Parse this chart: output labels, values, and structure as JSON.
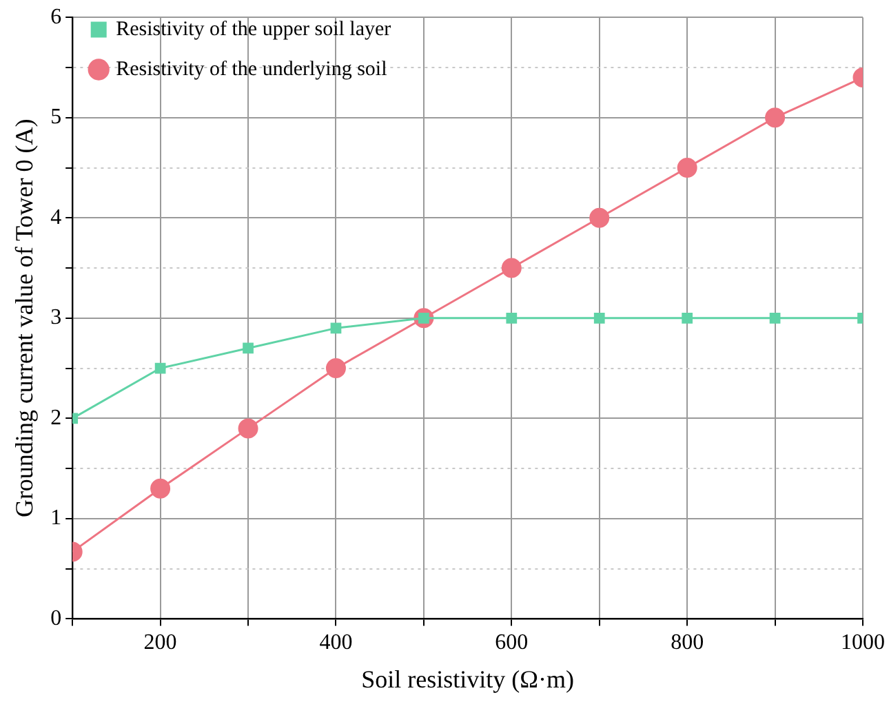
{
  "chart_data": {
    "type": "line",
    "xlabel": "Soil resistivity (Ω·m)",
    "ylabel": "Grounding current value of Tower 0 (A)",
    "x": [
      100,
      200,
      300,
      400,
      500,
      600,
      700,
      800,
      900,
      1000
    ],
    "series": [
      {
        "name": "Resistivity of the upper soil layer",
        "color": "#5fd3a6",
        "marker": "square",
        "values": [
          2.0,
          2.5,
          2.7,
          2.9,
          3.0,
          3.0,
          3.0,
          3.0,
          3.0,
          3.0
        ]
      },
      {
        "name": "Resistivity of the underlying soil",
        "color": "#ee7482",
        "marker": "circle",
        "values": [
          0.67,
          1.3,
          1.9,
          2.5,
          3.0,
          3.5,
          4.0,
          4.5,
          5.0,
          5.4
        ]
      }
    ],
    "xlim": [
      100,
      1000
    ],
    "xticks": [
      {
        "value": 100,
        "label": null
      },
      200,
      {
        "value": 300,
        "label": null
      },
      400,
      {
        "value": 500,
        "label": null
      },
      600,
      {
        "value": 700,
        "label": null
      },
      800,
      {
        "value": 900,
        "label": null
      },
      1000
    ],
    "ylim": [
      0,
      6
    ],
    "yticks": [
      0,
      {
        "value": 0.5,
        "label": null
      },
      1,
      {
        "value": 1.5,
        "label": null
      },
      2,
      {
        "value": 2.5,
        "label": null
      },
      3,
      {
        "value": 3.5,
        "label": null
      },
      4,
      {
        "value": 4.5,
        "label": null
      },
      5,
      {
        "value": 5.5,
        "label": null
      },
      6
    ],
    "grid": true,
    "legend": "top left",
    "line_style": "solid"
  }
}
